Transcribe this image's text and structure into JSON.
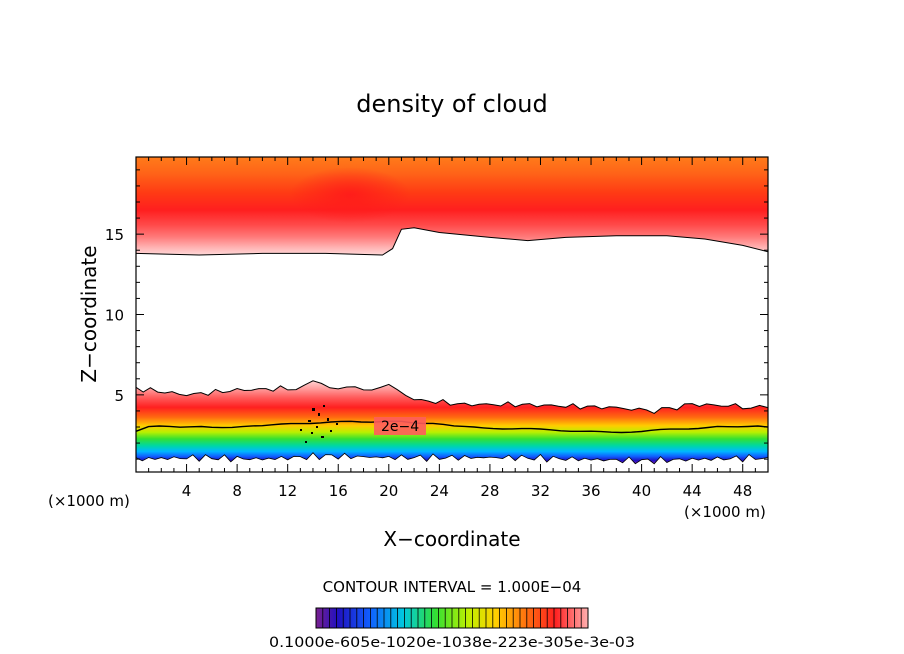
{
  "chart_data": {
    "type": "contour",
    "title": "density of cloud",
    "xlabel": "X−coordinate",
    "ylabel": "Z−coordinate",
    "x_unit_left": "(×1000 m)",
    "x_unit_right": "(×1000 m)",
    "xlim": [
      0,
      50
    ],
    "ylim": [
      0.2,
      19.8
    ],
    "x_ticks": [
      4,
      8,
      12,
      16,
      20,
      24,
      28,
      32,
      36,
      40,
      44,
      48
    ],
    "y_ticks": [
      5,
      10,
      15
    ],
    "contour_label": "2e−4",
    "contour_interval_text": "CONTOUR INTERVAL = 1.000E−04",
    "colorbar_labels_text": "0.1000e-605e-1020e-1038e-223e-305e-3e-03",
    "upper_cloud_base_km": [
      [
        0,
        13.8
      ],
      [
        5,
        13.7
      ],
      [
        10,
        13.8
      ],
      [
        15,
        13.8
      ],
      [
        19.5,
        13.7
      ],
      [
        20.3,
        14.1
      ],
      [
        21,
        15.3
      ],
      [
        22,
        15.4
      ],
      [
        24,
        15.1
      ],
      [
        28,
        14.8
      ],
      [
        31,
        14.6
      ],
      [
        34,
        14.8
      ],
      [
        38,
        14.9
      ],
      [
        42,
        14.9
      ],
      [
        45,
        14.7
      ],
      [
        48,
        14.3
      ],
      [
        50,
        13.9
      ]
    ],
    "lower_cloud_top_km": [
      [
        0,
        5.4
      ],
      [
        4,
        5.0
      ],
      [
        8,
        5.3
      ],
      [
        12,
        5.4
      ],
      [
        14,
        5.7
      ],
      [
        16,
        5.5
      ],
      [
        18,
        5.3
      ],
      [
        20,
        5.6
      ],
      [
        22,
        4.7
      ],
      [
        26,
        4.4
      ],
      [
        30,
        4.4
      ],
      [
        34,
        4.3
      ],
      [
        38,
        4.2
      ],
      [
        41,
        4.0
      ],
      [
        44,
        4.4
      ],
      [
        48,
        4.3
      ],
      [
        50,
        4.2
      ]
    ],
    "contour_2e4_km": [
      [
        0,
        2.7
      ],
      [
        1,
        3.0
      ],
      [
        6,
        3.0
      ],
      [
        10,
        3.1
      ],
      [
        13,
        3.2
      ],
      [
        17,
        3.4
      ],
      [
        21,
        3.3
      ],
      [
        26,
        3.0
      ],
      [
        32,
        2.8
      ],
      [
        40,
        2.7
      ],
      [
        46,
        3.0
      ],
      [
        50,
        3.0
      ]
    ],
    "lower_cloud_base_km": [
      [
        0,
        1.0
      ],
      [
        5,
        1.1
      ],
      [
        10,
        1.0
      ],
      [
        15,
        1.2
      ],
      [
        20,
        1.1
      ],
      [
        25,
        1.1
      ],
      [
        30,
        1.1
      ],
      [
        35,
        1.0
      ],
      [
        40,
        0.9
      ],
      [
        45,
        1.0
      ],
      [
        50,
        1.1
      ]
    ]
  }
}
